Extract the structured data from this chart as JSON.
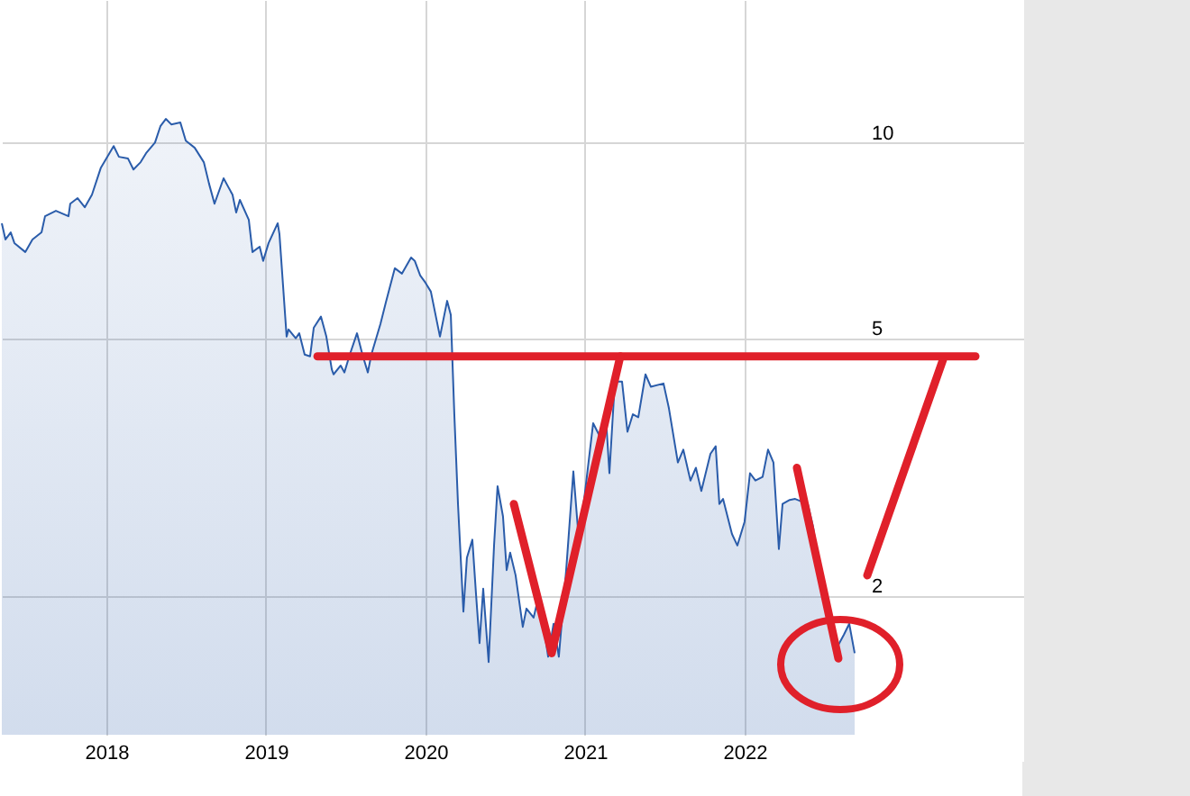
{
  "chart_data": {
    "type": "area",
    "log": "y",
    "grid": true,
    "xlim": [
      2017.345,
      2023.752
    ],
    "ylim": [
      1.22,
      16.6
    ],
    "xticks": [
      2018,
      2019,
      2020,
      2021,
      2022
    ],
    "yticks": [
      2,
      5,
      10
    ],
    "series": [
      {
        "color": "#2a5caa",
        "x": [
          2017.345,
          2017.368,
          2017.401,
          2017.424,
          2017.492,
          2017.537,
          2017.594,
          2017.616,
          2017.684,
          2017.763,
          2017.774,
          2017.82,
          2017.865,
          2017.91,
          2017.966,
          2018.046,
          2018.079,
          2018.136,
          2018.17,
          2018.215,
          2018.249,
          2018.305,
          2018.339,
          2018.373,
          2018.407,
          2018.464,
          2018.498,
          2018.554,
          2018.611,
          2018.644,
          2018.678,
          2018.735,
          2018.791,
          2018.814,
          2018.837,
          2018.893,
          2018.916,
          2018.961,
          2018.983,
          2019.017,
          2019.074,
          2019.085,
          2019.13,
          2019.142,
          2019.187,
          2019.209,
          2019.243,
          2019.277,
          2019.3,
          2019.345,
          2019.379,
          2019.413,
          2019.424,
          2019.469,
          2019.492,
          2019.526,
          2019.571,
          2019.605,
          2019.639,
          2019.661,
          2019.718,
          2019.752,
          2019.808,
          2019.853,
          2019.91,
          2019.933,
          2019.967,
          2020.0,
          2020.034,
          2020.091,
          2020.136,
          2020.159,
          2020.181,
          2020.204,
          2020.238,
          2020.26,
          2020.294,
          2020.317,
          2020.339,
          2020.362,
          2020.396,
          2020.43,
          2020.452,
          2020.486,
          2020.509,
          2020.531,
          2020.565,
          2020.61,
          2020.633,
          2020.678,
          2020.712,
          2020.769,
          2020.803,
          2020.836,
          2020.882,
          2020.927,
          2020.961,
          2020.995,
          2021.051,
          2021.096,
          2021.13,
          2021.153,
          2021.187,
          2021.232,
          2021.266,
          2021.3,
          2021.334,
          2021.379,
          2021.413,
          2021.492,
          2021.526,
          2021.582,
          2021.616,
          2021.661,
          2021.695,
          2021.729,
          2021.786,
          2021.819,
          2021.842,
          2021.865,
          2021.921,
          2021.955,
          2022.0,
          2022.034,
          2022.068,
          2022.113,
          2022.147,
          2022.181,
          2022.215,
          2022.238,
          2022.283,
          2022.317,
          2022.396,
          2022.43,
          2022.464,
          2022.509,
          2022.543,
          2022.577,
          2022.622,
          2022.656,
          2022.69
        ],
        "values": [
          7.51,
          7.09,
          7.27,
          7.0,
          6.78,
          7.09,
          7.27,
          7.7,
          7.85,
          7.7,
          8.05,
          8.21,
          7.95,
          8.31,
          9.15,
          9.88,
          9.51,
          9.45,
          9.09,
          9.33,
          9.63,
          10.0,
          10.6,
          10.88,
          10.67,
          10.74,
          10.07,
          9.82,
          9.33,
          8.64,
          8.05,
          8.81,
          8.31,
          7.8,
          8.16,
          7.6,
          6.78,
          6.91,
          6.57,
          7.0,
          7.51,
          7.23,
          5.02,
          5.15,
          4.99,
          5.08,
          4.71,
          4.68,
          5.18,
          5.39,
          5.02,
          4.47,
          4.39,
          4.53,
          4.42,
          4.71,
          5.08,
          4.71,
          4.42,
          4.71,
          5.25,
          5.67,
          6.4,
          6.28,
          6.65,
          6.57,
          6.24,
          6.08,
          5.89,
          5.02,
          5.7,
          5.42,
          3.81,
          2.77,
          1.89,
          2.29,
          2.44,
          2.01,
          1.69,
          2.05,
          1.58,
          2.39,
          2.95,
          2.65,
          2.19,
          2.33,
          2.15,
          1.79,
          1.91,
          1.85,
          2.01,
          1.61,
          1.81,
          1.61,
          2.19,
          3.11,
          2.44,
          2.82,
          3.69,
          3.51,
          3.81,
          3.09,
          4.28,
          4.28,
          3.58,
          3.81,
          3.77,
          4.39,
          4.2,
          4.25,
          3.89,
          3.21,
          3.36,
          3.01,
          3.15,
          2.9,
          3.31,
          3.4,
          2.77,
          2.82,
          2.49,
          2.39,
          2.6,
          3.09,
          3.01,
          3.05,
          3.36,
          3.21,
          2.36,
          2.77,
          2.81,
          2.82,
          2.77,
          2.55,
          2.24,
          2.01,
          1.81,
          1.66,
          1.74,
          1.81,
          1.63
        ]
      },
      {
        "type": "line",
        "color": "#e0202a",
        "x": [
          2019.323,
          2023.447
        ],
        "values": [
          4.68,
          4.68
        ]
      },
      {
        "type": "line",
        "color": "#e0202a",
        "x": [
          2020.554,
          2020.791,
          2021.221
        ],
        "values": [
          2.77,
          1.63,
          4.68
        ]
      },
      {
        "type": "line",
        "color": "#e0202a",
        "x": [
          2022.328,
          2022.588
        ],
        "values": [
          3.15,
          1.6
        ]
      },
      {
        "type": "line",
        "color": "#e0202a",
        "x": [
          2022.769,
          2023.243
        ],
        "values": [
          2.15,
          4.62
        ]
      }
    ]
  }
}
